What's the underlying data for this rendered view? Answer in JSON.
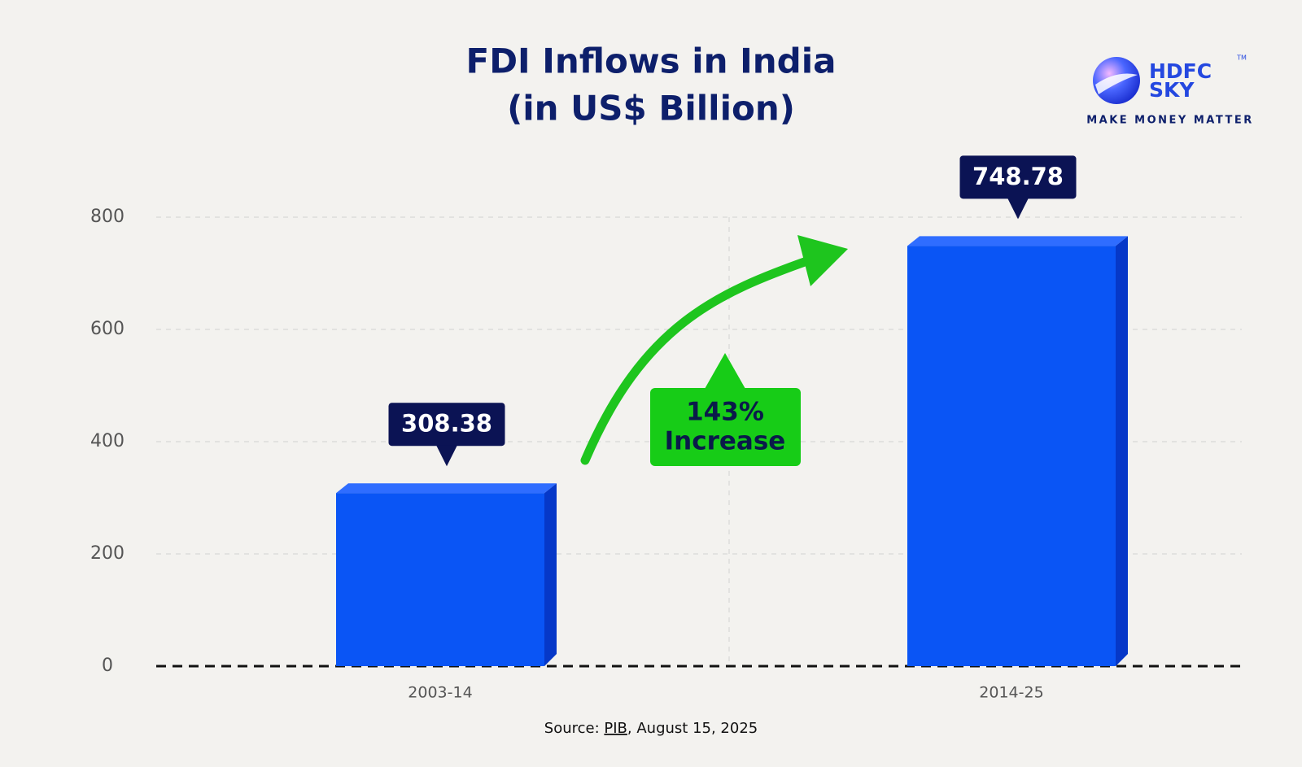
{
  "chart_data": {
    "type": "bar3d",
    "title": "FDI Inflows in India",
    "subtitle": "(in US$ Billion)",
    "categories": [
      "2003-14",
      "2014-25"
    ],
    "values": [
      308.38,
      748.78
    ],
    "color": "#0a55f5",
    "ylim": [
      0,
      800
    ],
    "yticks": [
      0,
      200,
      400,
      600,
      800
    ],
    "grid": true,
    "annotation": [
      "143%",
      "Increase"
    ],
    "source": [
      "Source: ",
      "PIB",
      ", August 15, 2025"
    ]
  },
  "logo": {
    "name": [
      "HDFC",
      "SKY"
    ],
    "mark": "TM",
    "tagline": "MAKE MONEY MATTER"
  }
}
